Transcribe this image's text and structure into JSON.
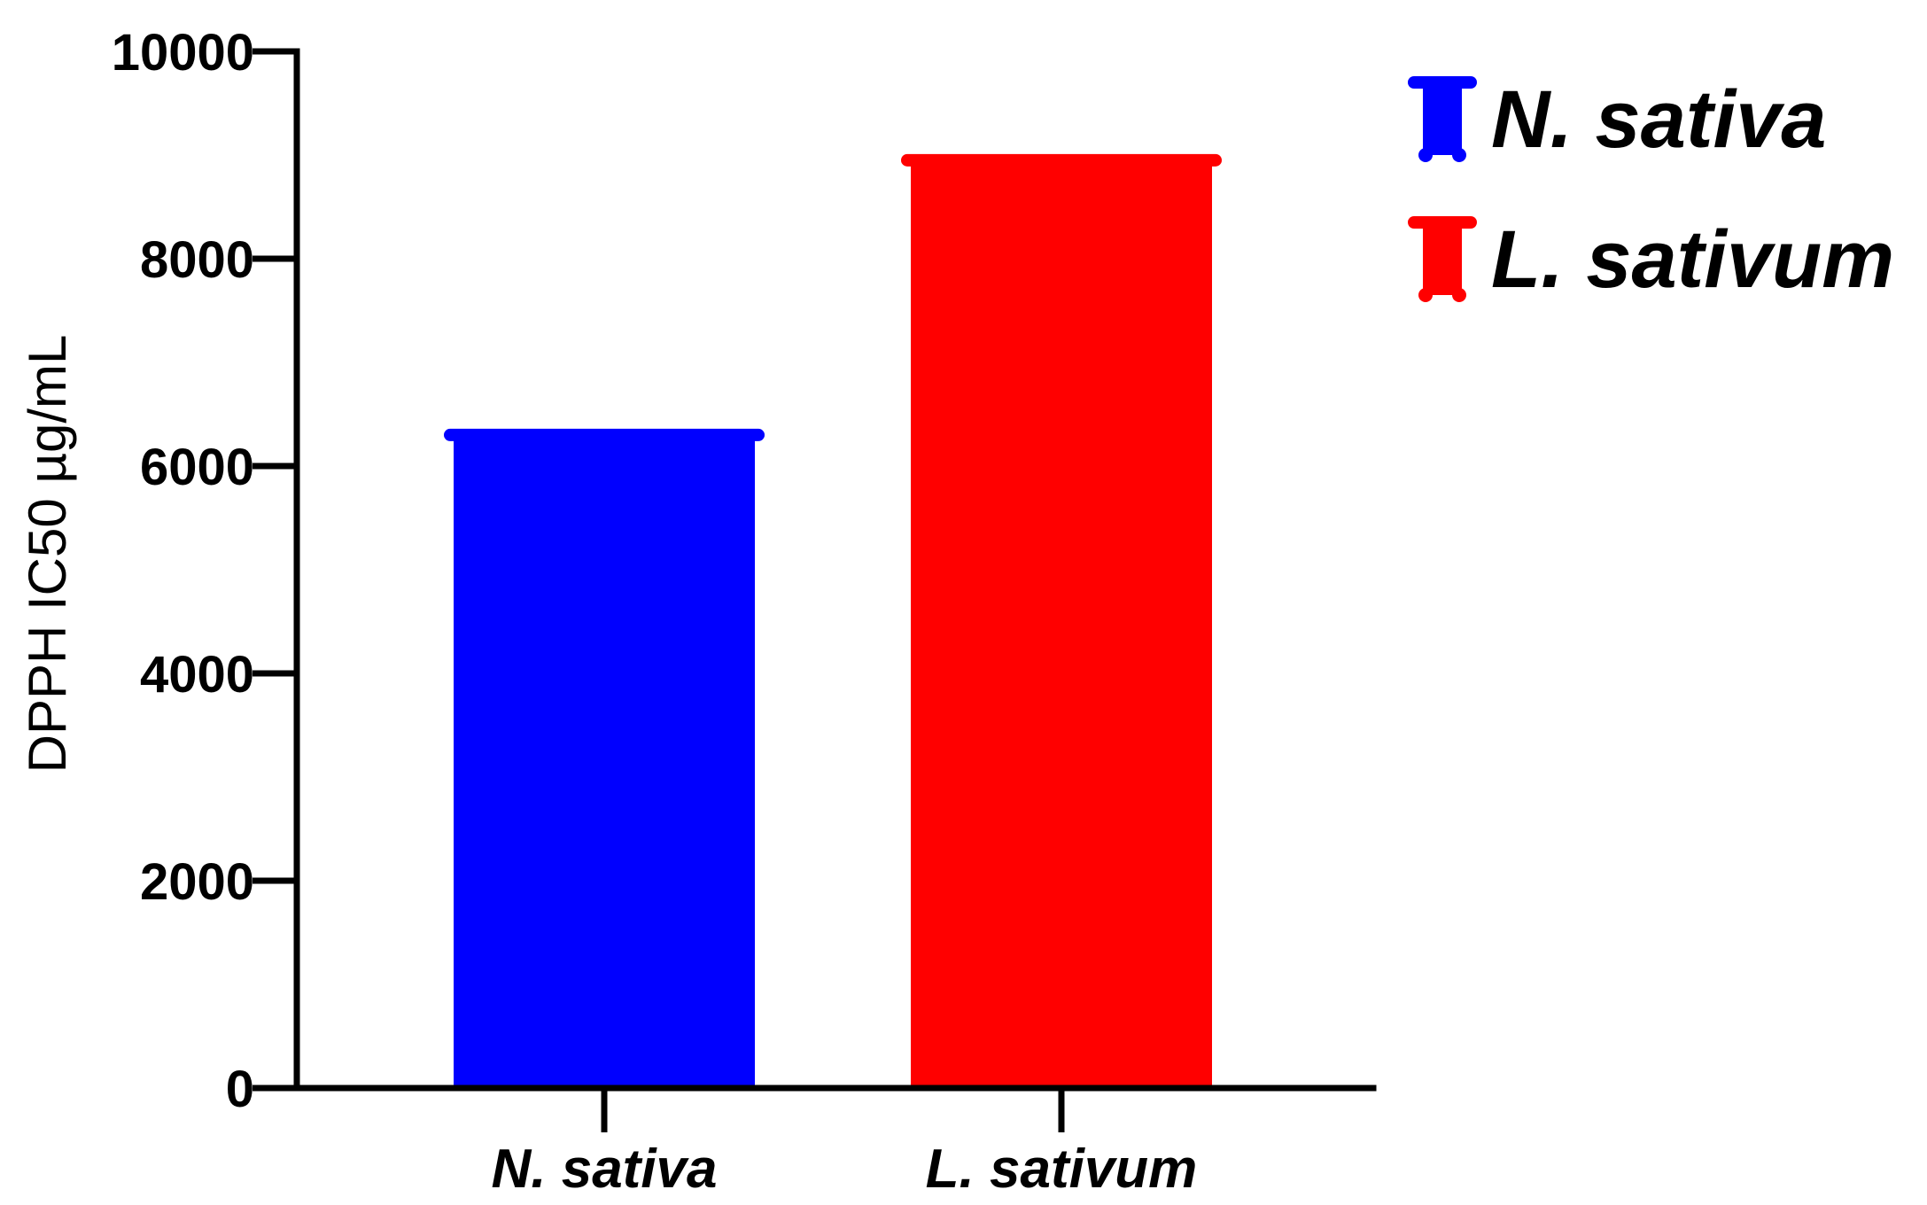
{
  "chart_data": {
    "type": "bar",
    "title": "",
    "xlabel": "",
    "ylabel": "DPPH IC50 µg/mL",
    "categories": [
      "N. sativa",
      "L. sativum"
    ],
    "values": [
      6300,
      8950
    ],
    "colors": [
      "#0000ff",
      "#ff0000"
    ],
    "ylim": [
      0,
      10000
    ],
    "yticks": [
      "0",
      "2000",
      "4000",
      "6000",
      "8000",
      "10000"
    ],
    "grid": false,
    "legend": {
      "placement": "top-right",
      "entries": [
        {
          "label": "N. sativa",
          "color": "#0000ff"
        },
        {
          "label": "L. sativum",
          "color": "#ff0000"
        }
      ]
    }
  }
}
